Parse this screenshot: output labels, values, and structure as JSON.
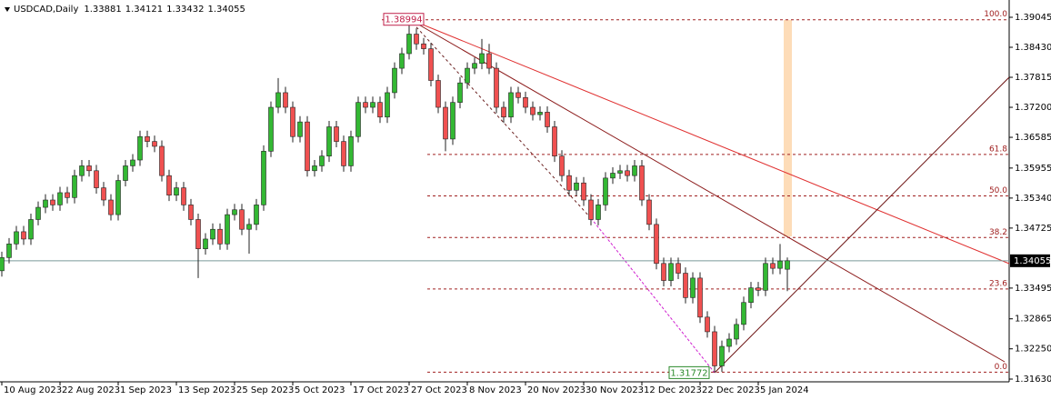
{
  "chart_data": {
    "type": "candlestick",
    "symbol": "USDCAD,Daily",
    "header_values": [
      1.33881,
      1.34121,
      1.33432,
      1.34055
    ],
    "categories": [
      "10 Aug 2023",
      null,
      null,
      null,
      null,
      null,
      null,
      null,
      "22 Aug 2023",
      null,
      null,
      null,
      null,
      null,
      null,
      null,
      "1 Sep 2023",
      null,
      null,
      null,
      null,
      null,
      null,
      null,
      "13 Sep 2023",
      null,
      null,
      null,
      null,
      null,
      null,
      null,
      "25 Sep 2023",
      null,
      null,
      null,
      null,
      null,
      null,
      null,
      "5 Oct 2023",
      null,
      null,
      null,
      null,
      null,
      null,
      null,
      "17 Oct 2023",
      null,
      null,
      null,
      null,
      null,
      null,
      null,
      "27 Oct 2023",
      null,
      null,
      null,
      null,
      null,
      null,
      null,
      "8 Nov 2023",
      null,
      null,
      null,
      null,
      null,
      null,
      null,
      "20 Nov 2023",
      null,
      null,
      null,
      null,
      null,
      null,
      null,
      "30 Nov 2023",
      null,
      null,
      null,
      null,
      null,
      null,
      null,
      "12 Dec 2023",
      null,
      null,
      null,
      null,
      null,
      null,
      null,
      "22 Dec 2023",
      null,
      null,
      null,
      null,
      null,
      null,
      null,
      "5 Jan 2024",
      null,
      null,
      null,
      null
    ],
    "open": [
      1.3385,
      1.3412,
      1.344,
      1.3465,
      1.345,
      1.349,
      1.3515,
      1.353,
      1.352,
      1.3545,
      1.3535,
      1.358,
      1.36,
      1.359,
      1.3555,
      1.353,
      1.35,
      1.357,
      1.36,
      1.3612,
      1.366,
      1.365,
      1.364,
      1.358,
      1.354,
      1.3555,
      1.352,
      1.349,
      1.343,
      1.345,
      1.347,
      1.344,
      1.35,
      1.351,
      1.347,
      1.348,
      1.352,
      1.363,
      1.372,
      1.375,
      1.372,
      1.366,
      1.369,
      1.359,
      1.36,
      1.362,
      1.368,
      1.365,
      1.36,
      1.366,
      1.373,
      1.372,
      1.373,
      1.37,
      1.375,
      1.38,
      1.383,
      1.387,
      1.385,
      1.384,
      1.3775,
      1.372,
      1.3655,
      1.373,
      1.377,
      1.38,
      1.381,
      1.383,
      1.38,
      1.372,
      1.37,
      1.375,
      1.374,
      1.372,
      1.3705,
      1.371,
      1.368,
      1.362,
      1.358,
      1.355,
      1.3565,
      1.353,
      1.349,
      1.352,
      1.3575,
      1.3585,
      1.359,
      1.358,
      1.36,
      1.353,
      1.348,
      1.34,
      1.3365,
      1.34,
      1.338,
      1.333,
      1.337,
      1.329,
      1.326,
      1.319,
      1.323,
      1.3245,
      1.3275,
      1.332,
      1.335,
      1.3345,
      1.34,
      1.339,
      1.33881
    ],
    "high": [
      1.3424,
      1.3452,
      1.3477,
      1.3477,
      1.3502,
      1.3527,
      1.3542,
      1.3542,
      1.3557,
      1.3557,
      1.3592,
      1.3612,
      1.3612,
      1.3602,
      1.3567,
      1.3542,
      1.3582,
      1.3612,
      1.3624,
      1.3672,
      1.3672,
      1.3662,
      1.3652,
      1.3592,
      1.3567,
      1.3567,
      1.3532,
      1.3502,
      1.3462,
      1.3482,
      1.3482,
      1.3512,
      1.3522,
      1.3522,
      1.3492,
      1.3532,
      1.3642,
      1.3732,
      1.378,
      1.3762,
      1.3732,
      1.3702,
      1.3702,
      1.3612,
      1.3632,
      1.3692,
      1.3692,
      1.3662,
      1.3672,
      1.3742,
      1.3742,
      1.3742,
      1.3742,
      1.3762,
      1.3812,
      1.3842,
      1.38994,
      1.3882,
      1.3862,
      1.3852,
      1.3787,
      1.3732,
      1.3742,
      1.3782,
      1.3812,
      1.3822,
      1.386,
      1.385,
      1.3812,
      1.3732,
      1.3762,
      1.3762,
      1.3752,
      1.3732,
      1.3722,
      1.3722,
      1.3692,
      1.3632,
      1.3592,
      1.3577,
      1.3577,
      1.3542,
      1.3532,
      1.3587,
      1.3597,
      1.3602,
      1.3602,
      1.3612,
      1.3612,
      1.3542,
      1.3492,
      1.3412,
      1.3412,
      1.3412,
      1.3392,
      1.3382,
      1.3382,
      1.3302,
      1.3272,
      1.3242,
      1.3257,
      1.3287,
      1.3332,
      1.3362,
      1.3362,
      1.3412,
      1.3412,
      1.344,
      1.34121
    ],
    "low": [
      1.3373,
      1.34,
      1.3428,
      1.3438,
      1.3438,
      1.3478,
      1.3503,
      1.3508,
      1.3508,
      1.3523,
      1.3523,
      1.3568,
      1.3578,
      1.3543,
      1.3518,
      1.3488,
      1.3488,
      1.3558,
      1.3588,
      1.36,
      1.3638,
      1.3628,
      1.3568,
      1.3528,
      1.3528,
      1.3508,
      1.3478,
      1.337,
      1.3418,
      1.3438,
      1.3428,
      1.3428,
      1.3488,
      1.3458,
      1.342,
      1.3468,
      1.3508,
      1.3618,
      1.3708,
      1.3708,
      1.3648,
      1.3648,
      1.3578,
      1.3578,
      1.3588,
      1.3608,
      1.3638,
      1.3588,
      1.3588,
      1.3648,
      1.3708,
      1.3708,
      1.3688,
      1.3688,
      1.3738,
      1.3788,
      1.3818,
      1.3838,
      1.3828,
      1.3763,
      1.3708,
      1.363,
      1.3643,
      1.3718,
      1.3758,
      1.3788,
      1.3798,
      1.3788,
      1.3708,
      1.3688,
      1.3688,
      1.3728,
      1.3708,
      1.3693,
      1.3693,
      1.3668,
      1.3608,
      1.3568,
      1.3538,
      1.3538,
      1.3518,
      1.3478,
      1.3478,
      1.3508,
      1.3563,
      1.3573,
      1.3568,
      1.3568,
      1.3518,
      1.3468,
      1.3388,
      1.3353,
      1.3353,
      1.3368,
      1.3318,
      1.3318,
      1.3278,
      1.3248,
      1.31772,
      1.3178,
      1.3218,
      1.3233,
      1.3263,
      1.3308,
      1.3333,
      1.3333,
      1.3378,
      1.3378,
      1.33432
    ],
    "close": [
      1.3412,
      1.344,
      1.3465,
      1.345,
      1.349,
      1.3515,
      1.353,
      1.352,
      1.3545,
      1.3535,
      1.358,
      1.36,
      1.359,
      1.3555,
      1.353,
      1.35,
      1.357,
      1.36,
      1.3612,
      1.366,
      1.365,
      1.364,
      1.358,
      1.354,
      1.3555,
      1.352,
      1.349,
      1.343,
      1.345,
      1.347,
      1.344,
      1.35,
      1.351,
      1.347,
      1.348,
      1.352,
      1.363,
      1.372,
      1.375,
      1.372,
      1.366,
      1.369,
      1.359,
      1.36,
      1.362,
      1.368,
      1.365,
      1.36,
      1.366,
      1.373,
      1.372,
      1.373,
      1.37,
      1.375,
      1.38,
      1.383,
      1.387,
      1.385,
      1.384,
      1.3775,
      1.372,
      1.3655,
      1.373,
      1.377,
      1.38,
      1.381,
      1.383,
      1.38,
      1.372,
      1.37,
      1.375,
      1.374,
      1.372,
      1.3705,
      1.371,
      1.368,
      1.362,
      1.358,
      1.355,
      1.3565,
      1.353,
      1.349,
      1.352,
      1.3575,
      1.3585,
      1.359,
      1.358,
      1.36,
      1.353,
      1.348,
      1.34,
      1.3365,
      1.34,
      1.338,
      1.333,
      1.337,
      1.329,
      1.326,
      1.319,
      1.323,
      1.3245,
      1.3275,
      1.332,
      1.335,
      1.3345,
      1.34,
      1.339,
      1.3405,
      1.34055
    ],
    "colors": {
      "up": "#33b833",
      "down": "#f05050",
      "outline": "#222222"
    },
    "ylim": [
      1.31574,
      1.39399
    ],
    "yticks": [
      1.39045,
      {
        "value": 1.3843,
        "label": "1.38430"
      },
      1.37815,
      {
        "value": 1.372,
        "label": "1.37200"
      },
      1.36585,
      1.35955,
      {
        "value": 1.3534,
        "label": "1.35340"
      },
      1.34725,
      1.33495,
      1.32865,
      {
        "value": 1.3225,
        "label": "1.32250"
      },
      {
        "value": 1.3163,
        "label": "1.31630"
      }
    ],
    "current_price": 1.34055,
    "high_label": 1.38994,
    "low_label": 1.31772,
    "fib_levels": [
      {
        "value": 100,
        "label": "100.0"
      },
      {
        "value": 61.8,
        "label": "61.8"
      },
      {
        "value": 50,
        "label": "50.0"
      },
      {
        "value": 38.2,
        "label": "38.2"
      },
      {
        "value": 23.6,
        "label": "23.6"
      },
      {
        "value": 0,
        "label": "0.0"
      }
    ]
  }
}
